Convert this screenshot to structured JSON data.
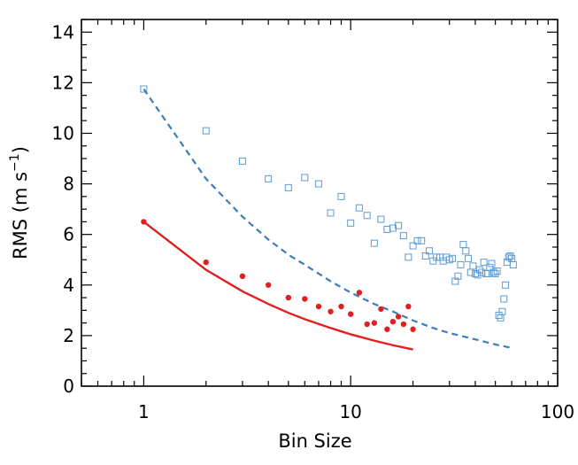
{
  "chart_data": {
    "type": "scatter",
    "title": "",
    "xlabel": "Bin Size",
    "ylabel": "RMS (m s",
    "ylabel_unit_sup": "−1",
    "ylabel_close": ")",
    "xscale": "log",
    "xlim": [
      0.5,
      100
    ],
    "ylim": [
      0,
      14.5
    ],
    "xticks": [
      1,
      10,
      100
    ],
    "xtick_labels": [
      "1",
      "10",
      "100"
    ],
    "yticks": [
      0,
      2,
      4,
      6,
      8,
      10,
      12,
      14
    ],
    "ytick_labels": [
      "0",
      "2",
      "4",
      "6",
      "8",
      "10",
      "12",
      "14"
    ],
    "grid": false,
    "legend": "none",
    "series": [
      {
        "kind": "scatter",
        "marker": "open-square",
        "color": "#5b9bd5",
        "points": [
          [
            1,
            11.75
          ],
          [
            2,
            10.1
          ],
          [
            3,
            8.9
          ],
          [
            4,
            8.2
          ],
          [
            5,
            7.85
          ],
          [
            6,
            8.25
          ],
          [
            7,
            8.0
          ],
          [
            8,
            6.85
          ],
          [
            9,
            7.5
          ],
          [
            10,
            6.45
          ],
          [
            11,
            7.05
          ],
          [
            12,
            6.75
          ],
          [
            13,
            5.65
          ],
          [
            14,
            6.6
          ],
          [
            15,
            6.2
          ],
          [
            16,
            6.25
          ],
          [
            17,
            6.35
          ],
          [
            18,
            5.95
          ],
          [
            19,
            5.1
          ],
          [
            20,
            5.55
          ],
          [
            21,
            5.75
          ],
          [
            22,
            5.75
          ],
          [
            23,
            5.15
          ],
          [
            24,
            5.35
          ],
          [
            25,
            4.95
          ],
          [
            26,
            5.1
          ],
          [
            27,
            5.1
          ],
          [
            28,
            4.95
          ],
          [
            29,
            5.1
          ],
          [
            30,
            5.0
          ],
          [
            31,
            5.05
          ],
          [
            32,
            4.15
          ],
          [
            33,
            4.35
          ],
          [
            34,
            4.8
          ],
          [
            35,
            5.6
          ],
          [
            36,
            5.35
          ],
          [
            37,
            5.05
          ],
          [
            38,
            4.5
          ],
          [
            39,
            4.75
          ],
          [
            40,
            4.45
          ],
          [
            41,
            4.4
          ],
          [
            42,
            4.6
          ],
          [
            43,
            4.5
          ],
          [
            44,
            4.9
          ],
          [
            45,
            4.45
          ],
          [
            46,
            4.45
          ],
          [
            47,
            4.7
          ],
          [
            48,
            4.85
          ],
          [
            49,
            4.5
          ],
          [
            50,
            4.45
          ],
          [
            51,
            4.55
          ],
          [
            52,
            2.8
          ],
          [
            53,
            2.7
          ],
          [
            54,
            2.95
          ],
          [
            55,
            3.45
          ],
          [
            56,
            4.0
          ],
          [
            57,
            4.9
          ],
          [
            58,
            5.1
          ],
          [
            59,
            5.15
          ],
          [
            60,
            5.05
          ],
          [
            61,
            4.8
          ]
        ]
      },
      {
        "kind": "line",
        "style": "dashed",
        "color": "#3a7dbf",
        "points": [
          [
            1,
            11.75
          ],
          [
            2,
            8.2
          ],
          [
            3,
            6.7
          ],
          [
            4,
            5.8
          ],
          [
            5,
            5.2
          ],
          [
            6,
            4.8
          ],
          [
            8,
            4.15
          ],
          [
            10,
            3.7
          ],
          [
            13,
            3.25
          ],
          [
            16,
            2.95
          ],
          [
            20,
            2.6
          ],
          [
            25,
            2.3
          ],
          [
            30,
            2.1
          ],
          [
            40,
            1.85
          ],
          [
            50,
            1.65
          ],
          [
            61,
            1.5
          ]
        ]
      },
      {
        "kind": "scatter",
        "marker": "filled-circle",
        "color": "#e02020",
        "points": [
          [
            1,
            6.5
          ],
          [
            2,
            4.9
          ],
          [
            3,
            4.35
          ],
          [
            4,
            4.0
          ],
          [
            5,
            3.5
          ],
          [
            6,
            3.45
          ],
          [
            7,
            3.15
          ],
          [
            8,
            2.95
          ],
          [
            9,
            3.15
          ],
          [
            10,
            2.85
          ],
          [
            11,
            3.7
          ],
          [
            12,
            2.45
          ],
          [
            13,
            2.5
          ],
          [
            14,
            3.05
          ],
          [
            15,
            2.25
          ],
          [
            16,
            2.55
          ],
          [
            17,
            2.75
          ],
          [
            18,
            2.45
          ],
          [
            19,
            3.15
          ],
          [
            20,
            2.25
          ]
        ]
      },
      {
        "kind": "line",
        "style": "solid",
        "color": "#e02020",
        "points": [
          [
            1,
            6.5
          ],
          [
            2,
            4.6
          ],
          [
            3,
            3.75
          ],
          [
            4,
            3.25
          ],
          [
            5,
            2.9
          ],
          [
            6,
            2.65
          ],
          [
            8,
            2.3
          ],
          [
            10,
            2.05
          ],
          [
            13,
            1.8
          ],
          [
            16,
            1.62
          ],
          [
            20,
            1.45
          ]
        ]
      }
    ]
  }
}
